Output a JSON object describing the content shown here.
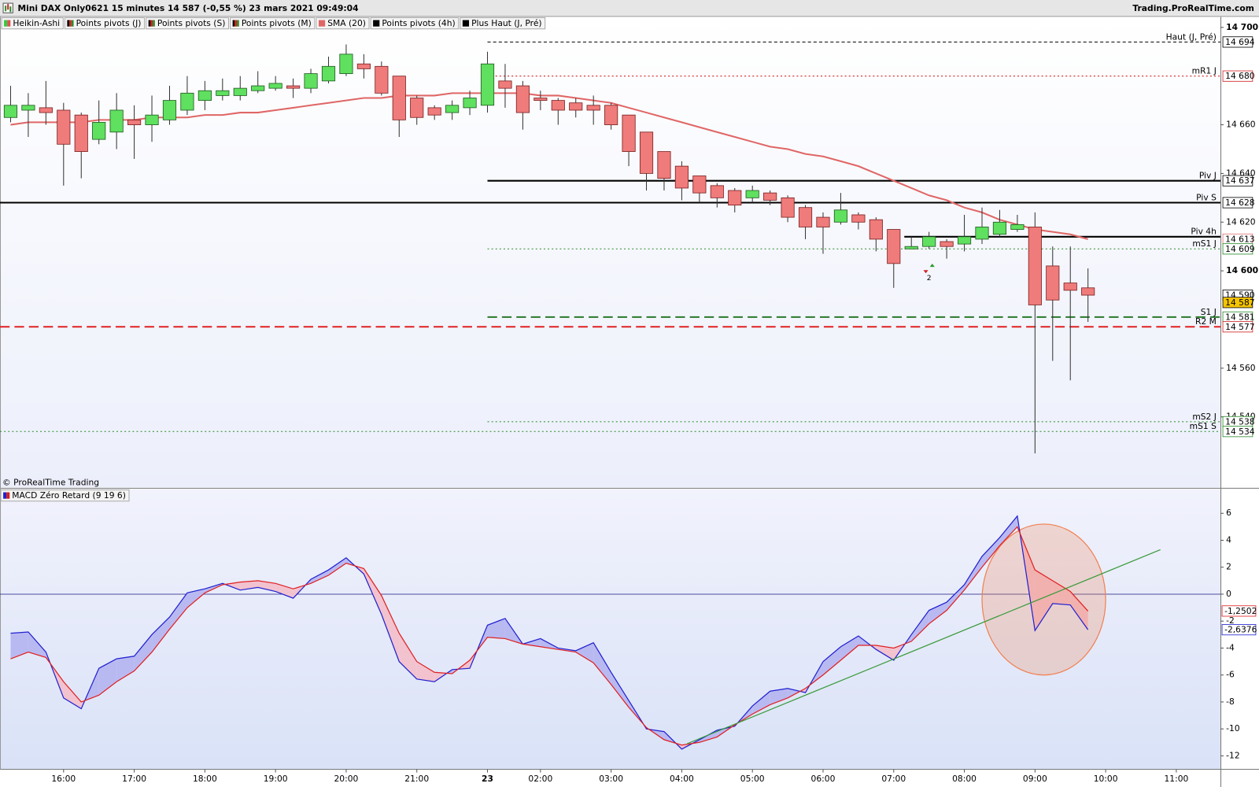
{
  "header": {
    "title": "Mini DAX Only0621 15 minutes 14 587 (-0,55 %) 23 mars 2021 09:49:04",
    "site": "Trading.ProRealTime.com",
    "copyright": "© ProRealTime Trading"
  },
  "indicators": [
    {
      "name": "Heikin-Ashi",
      "colors": [
        "#2ecc40",
        "#e05050"
      ]
    },
    {
      "name": "Points pivots (J)",
      "colors": [
        "#000000",
        "#d02020",
        "#2a8a2a"
      ]
    },
    {
      "name": "Points pivots (S)",
      "colors": [
        "#000000",
        "#d02020",
        "#2a8a2a"
      ]
    },
    {
      "name": "Points pivots (M)",
      "colors": [
        "#000000",
        "#d02020",
        "#2a8a2a"
      ]
    },
    {
      "name": "SMA (20)",
      "colors": [
        "#e06666"
      ]
    },
    {
      "name": "Points pivots (4h)",
      "colors": [
        "#000000"
      ]
    },
    {
      "name": "Plus Haut (J, Pré)",
      "colors": [
        "#000000"
      ]
    }
  ],
  "chart_data": [
    {
      "type": "candlestick",
      "xlim": [
        -0.6,
        68.5
      ],
      "ylim": [
        14511,
        14704
      ],
      "yticks": [
        {
          "value": 14700,
          "label": "14 700"
        },
        {
          "value": 14660,
          "label": "14 660"
        },
        {
          "value": 14640,
          "label": "14 640"
        },
        {
          "value": 14620,
          "label": "14 620"
        },
        {
          "value": 14600,
          "label": "14 600"
        },
        {
          "value": 14560,
          "label": "14 560"
        },
        {
          "value": 14540,
          "label": "14 540"
        }
      ],
      "up_color": "#5fe05f",
      "down_color": "#ef7b7b",
      "open": [
        14663,
        14666,
        14667,
        14666,
        14664,
        14654,
        14657,
        14662,
        14660,
        14662,
        14666,
        14670,
        14672,
        14672,
        14674,
        14675,
        14676,
        14675,
        14678,
        14681,
        14685,
        14684,
        14680,
        14671,
        14667,
        14665,
        14667,
        14668,
        14678,
        14676,
        14671,
        14670,
        14669,
        14668,
        14668,
        14664,
        14657,
        14649,
        14643,
        14639,
        14635,
        14633,
        14630,
        14632,
        14630,
        14626,
        14622,
        14620,
        14623,
        14621,
        14617,
        14609,
        14610,
        14612,
        14611,
        14613,
        14615,
        14617,
        14618,
        14602,
        14595,
        14593
      ],
      "high": [
        14676,
        14673,
        14678,
        14669,
        14665,
        14670,
        14673,
        14668,
        14672,
        14676,
        14680,
        14678,
        14679,
        14680,
        14682,
        14680,
        14679,
        14683,
        14688,
        14693,
        14689,
        14686,
        14680,
        14672,
        14668,
        14670,
        14674,
        14690,
        14685,
        14678,
        14674,
        14671,
        14671,
        14672,
        14669,
        14664,
        14657,
        14649,
        14645,
        14639,
        14636,
        14634,
        14635,
        14633,
        14631,
        14627,
        14624,
        14632,
        14624,
        14622,
        14617,
        14614,
        14616,
        14613,
        14623,
        14626,
        14625,
        14623,
        14624,
        14610,
        14610,
        14601
      ],
      "low": [
        14661,
        14655,
        14660,
        14635,
        14638,
        14652,
        14650,
        14646,
        14653,
        14660,
        14664,
        14666,
        14670,
        14670,
        14673,
        14674,
        14671,
        14673,
        14677,
        14680,
        14679,
        14672,
        14655,
        14660,
        14662,
        14662,
        14664,
        14665,
        14667,
        14658,
        14666,
        14660,
        14663,
        14660,
        14658,
        14643,
        14633,
        14633,
        14629,
        14628,
        14626,
        14624,
        14628,
        14627,
        14620,
        14613,
        14607,
        14619,
        14617,
        14608,
        14593,
        14609,
        14609,
        14605,
        14608,
        14611,
        14614,
        14616,
        14525,
        14563,
        14555,
        14579
      ],
      "close": [
        14668,
        14668,
        14665,
        14652,
        14649,
        14661,
        14666,
        14660,
        14664,
        14670,
        14673,
        14674,
        14674,
        14675,
        14676,
        14677,
        14675,
        14681,
        14684,
        14689,
        14683,
        14673,
        14662,
        14663,
        14664,
        14668,
        14671,
        14685,
        14675,
        14665,
        14670,
        14666,
        14666,
        14666,
        14660,
        14649,
        14640,
        14638,
        14634,
        14632,
        14630,
        14627,
        14633,
        14629,
        14622,
        14618,
        14618,
        14625,
        14620,
        14613,
        14603,
        14610,
        14614,
        14610,
        14614,
        14618,
        14620,
        14619,
        14586,
        14588,
        14592,
        14590
      ],
      "sma": {
        "color": "#e06666",
        "values": [
          14660,
          14661,
          14661,
          14661,
          14661,
          14662,
          14662,
          14662,
          14663,
          14663,
          14663,
          14664,
          14664,
          14665,
          14665,
          14666,
          14667,
          14668,
          14669,
          14670,
          14671,
          14671,
          14672,
          14672,
          14672,
          14673,
          14673,
          14673,
          14673,
          14673,
          14672,
          14672,
          14671,
          14670,
          14669,
          14667,
          14665,
          14663,
          14661,
          14659,
          14657,
          14655,
          14653,
          14651,
          14650,
          14648,
          14647,
          14645,
          14643,
          14640,
          14637,
          14634,
          14631,
          14629,
          14626,
          14624,
          14621,
          14619,
          14617,
          14616,
          14615,
          14613
        ]
      },
      "levels": [
        {
          "name": "Haut (J, Pré)",
          "value": 14694,
          "color": "#000000",
          "dash": "4 3",
          "width": 1,
          "start_index": 27
        },
        {
          "name": "mR1 J",
          "value": 14680,
          "color": "#d02020",
          "dash": "2 3",
          "width": 1,
          "start_index": 27
        },
        {
          "name": "Piv J",
          "value": 14637,
          "color": "#000000",
          "dash": "none",
          "width": 2,
          "start_index": 27
        },
        {
          "name": "Piv S",
          "value": 14628,
          "color": "#000000",
          "dash": "none",
          "width": 2,
          "start_index": null
        },
        {
          "name": "Piv 4h",
          "value": 14614,
          "color": "#000000",
          "dash": "none",
          "width": 2,
          "start_index": 50.6
        },
        {
          "name": "mS1 J",
          "value": 14609,
          "color": "#2a8a2a",
          "dash": "2 3",
          "width": 1,
          "start_index": 27
        },
        {
          "name": "S1 J",
          "value": 14581,
          "color": "#2a7a2a",
          "dash": "12 6",
          "width": 2,
          "start_index": 27
        },
        {
          "name": "R2 M",
          "value": 14577,
          "color": "#e02020",
          "dash": "12 6",
          "width": 2,
          "start_index": null
        },
        {
          "name": "mS2 J",
          "value": 14538,
          "color": "#2a8a2a",
          "dash": "2 3",
          "width": 1,
          "start_index": 27
        },
        {
          "name": "mS1 S",
          "value": 14534,
          "color": "#2a8a2a",
          "dash": "2 3",
          "width": 1,
          "start_index": null
        }
      ],
      "price_tags": [
        {
          "value": 14694,
          "label": "14 694",
          "color": "#000000",
          "bg": "#ffffff"
        },
        {
          "value": 14680,
          "label": "14 680",
          "color": "#d02020",
          "bg": "#ffffff"
        },
        {
          "value": 14637,
          "label": "14 637",
          "color": "#000000",
          "bg": "#ffffff"
        },
        {
          "value": 14628,
          "label": "14 628",
          "color": "#000000",
          "bg": "#ffffff"
        },
        {
          "value": 14613,
          "label": "14 613",
          "color": "#e07070",
          "bg": "#ffffff"
        },
        {
          "value": 14609,
          "label": "14 609",
          "color": "#2a8a2a",
          "bg": "#ffffff"
        },
        {
          "value": 14590,
          "label": "14 590",
          "color": "#000000",
          "bg": "#ffffff"
        },
        {
          "value": 14587,
          "label": "14 587",
          "color": "#000000",
          "bg": "#f5c400"
        },
        {
          "value": 14581,
          "label": "14 581",
          "color": "#2a8a2a",
          "bg": "#ffffff"
        },
        {
          "value": 14577,
          "label": "14 577",
          "color": "#d02020",
          "bg": "#ffffff"
        },
        {
          "value": 14538,
          "label": "14 538",
          "color": "#2a8a2a",
          "bg": "#ffffff"
        },
        {
          "value": 14534,
          "label": "14 534",
          "color": "#2a8a2a",
          "bg": "#ffffff"
        }
      ],
      "signal": {
        "label": "2",
        "x": 52,
        "y": 14597
      }
    },
    {
      "type": "line",
      "title": "MACD Zéro Retard (9 19 6)",
      "legend_colors": [
        "#2020d0",
        "#d02020"
      ],
      "xlim": [
        -0.6,
        68.5
      ],
      "ylim": [
        -13.0,
        7.8
      ],
      "yticks": [
        6,
        4,
        2,
        0,
        -2,
        -4,
        -6,
        -8,
        -10,
        -12
      ],
      "xticks": [
        {
          "value": 3,
          "label": "16:00"
        },
        {
          "value": 7,
          "label": "17:00"
        },
        {
          "value": 11,
          "label": "18:00"
        },
        {
          "value": 15,
          "label": "19:00"
        },
        {
          "value": 19,
          "label": "20:00"
        },
        {
          "value": 23,
          "label": "21:00"
        },
        {
          "value": 27,
          "label": "23"
        },
        {
          "value": 30,
          "label": "02:00"
        },
        {
          "value": 34,
          "label": "03:00"
        },
        {
          "value": 38,
          "label": "04:00"
        },
        {
          "value": 42,
          "label": "05:00"
        },
        {
          "value": 46,
          "label": "06:00"
        },
        {
          "value": 50,
          "label": "07:00"
        },
        {
          "value": 54,
          "label": "08:00"
        },
        {
          "value": 58,
          "label": "09:00"
        },
        {
          "value": 62,
          "label": "10:00"
        },
        {
          "value": 66,
          "label": "11:00"
        }
      ],
      "zero_color": "#1a1a80",
      "series": [
        {
          "color": "#2020d0",
          "fill": "#b9b9f2",
          "values": [
            -2.9,
            -2.8,
            -4.3,
            -7.7,
            -8.5,
            -5.5,
            -4.8,
            -4.6,
            -3.0,
            -1.7,
            0.1,
            0.4,
            0.8,
            0.3,
            0.5,
            0.2,
            -0.3,
            1.1,
            1.8,
            2.7,
            1.5,
            -1.5,
            -5.0,
            -6.3,
            -6.5,
            -5.6,
            -5.5,
            -2.3,
            -1.8,
            -3.7,
            -3.3,
            -4.0,
            -4.2,
            -3.6,
            -5.8,
            -7.9,
            -10.0,
            -10.2,
            -11.5,
            -10.8,
            -10.1,
            -9.8,
            -8.3,
            -7.2,
            -7.0,
            -7.3,
            -5.0,
            -3.9,
            -3.1,
            -4.1,
            -4.9,
            -3.0,
            -1.2,
            -0.6,
            0.7,
            2.8,
            4.2,
            5.8,
            -2.7,
            -0.7,
            -0.8,
            -2.6376
          ],
          "value_labels": [
            null,
            null,
            null,
            null,
            null,
            null,
            null,
            null,
            null,
            null,
            null,
            null,
            null,
            null,
            null,
            null,
            null,
            null,
            null,
            null,
            null,
            null,
            null,
            null,
            null,
            null,
            null,
            null,
            null,
            null,
            null,
            null,
            null,
            null,
            null,
            null,
            null,
            null,
            null,
            null,
            null,
            null,
            null,
            null,
            null,
            null,
            null,
            null,
            null,
            null,
            null,
            null,
            null,
            null,
            null,
            null,
            null,
            null,
            null,
            null,
            null,
            "-2,6376"
          ]
        },
        {
          "color": "#e02020",
          "fill": "#f2c2cf",
          "values": [
            -4.8,
            -4.3,
            -4.7,
            -6.5,
            -8.0,
            -7.5,
            -6.5,
            -5.7,
            -4.3,
            -2.6,
            -1.0,
            0.1,
            0.7,
            0.9,
            1.0,
            0.8,
            0.4,
            0.8,
            1.4,
            2.3,
            1.9,
            -0.1,
            -2.9,
            -5.0,
            -5.8,
            -5.9,
            -4.9,
            -3.2,
            -3.3,
            -3.7,
            -3.9,
            -4.1,
            -4.3,
            -5.1,
            -6.7,
            -8.4,
            -9.9,
            -10.8,
            -11.2,
            -11.0,
            -10.6,
            -9.7,
            -8.9,
            -8.2,
            -7.7,
            -7.0,
            -6.0,
            -4.9,
            -3.8,
            -3.8,
            -4.0,
            -3.5,
            -2.2,
            -1.2,
            0.3,
            2.0,
            3.6,
            5.0,
            1.8,
            1.0,
            0.2,
            -1.2502
          ],
          "value_labels": [
            null,
            null,
            null,
            null,
            null,
            null,
            null,
            null,
            null,
            null,
            null,
            null,
            null,
            null,
            null,
            null,
            null,
            null,
            null,
            null,
            null,
            null,
            null,
            null,
            null,
            null,
            null,
            null,
            null,
            null,
            null,
            null,
            null,
            null,
            null,
            null,
            null,
            null,
            null,
            null,
            null,
            null,
            null,
            null,
            null,
            null,
            null,
            null,
            null,
            null,
            null,
            null,
            null,
            null,
            null,
            null,
            null,
            null,
            null,
            null,
            null,
            "-1,2502"
          ]
        }
      ],
      "trendline": {
        "color": "#3a9a3a",
        "x": [
          38.3,
          65.1
        ],
        "y": [
          -11.1,
          3.3
        ]
      },
      "highlight": {
        "x": 58.5,
        "y": -0.4,
        "rx": 3.5,
        "ry": 5.6,
        "color": "#f08050"
      }
    }
  ]
}
